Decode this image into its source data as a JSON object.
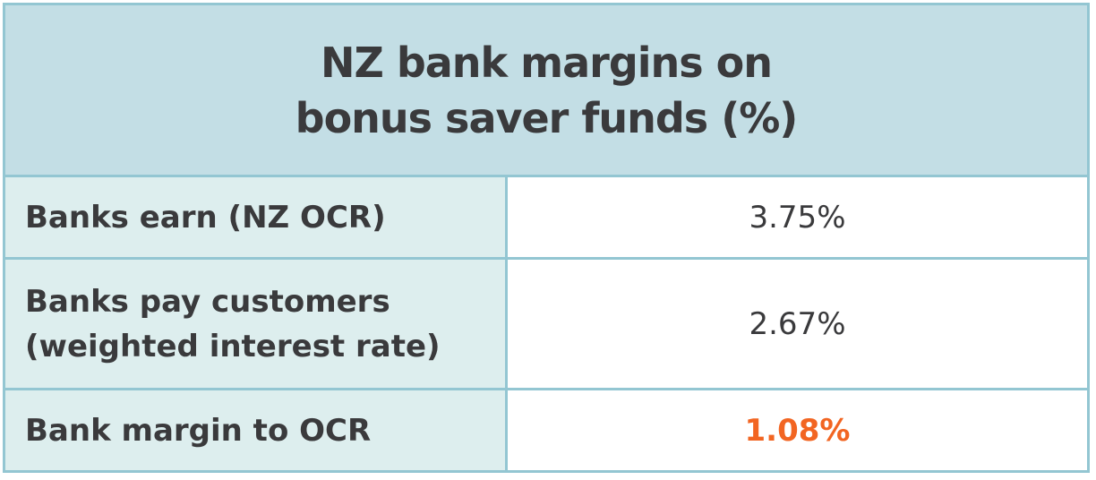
{
  "title": {
    "line1": "NZ bank margins on",
    "line2": "bonus saver funds (%)"
  },
  "rows": [
    {
      "label_lines": [
        "Banks earn (NZ OCR)"
      ],
      "value": "3.75%"
    },
    {
      "label_lines": [
        "Banks pay customers",
        "(weighted interest rate)"
      ],
      "value": "2.67%"
    },
    {
      "label_lines": [
        "Bank margin to OCR"
      ],
      "value": "1.08%",
      "highlight_color": "#f26522"
    }
  ],
  "colors": {
    "header_bg": "#c3dee5",
    "label_bg": "#ddeeee",
    "border": "#93c6d2",
    "highlight": "#f26522"
  }
}
